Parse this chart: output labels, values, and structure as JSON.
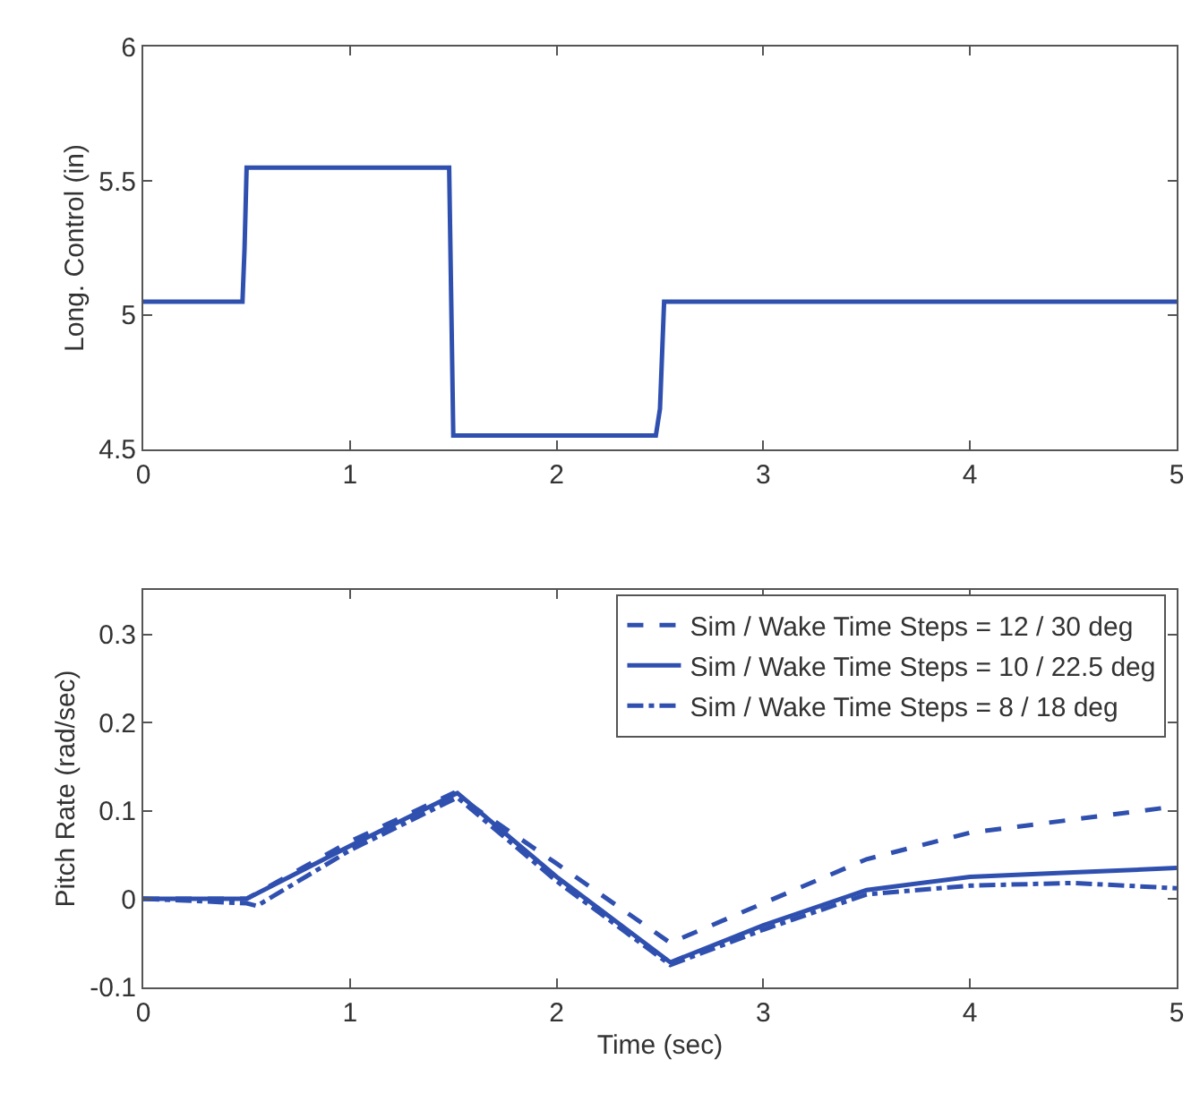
{
  "chart_data": [
    {
      "type": "line",
      "ylabel": "Long. Control (in)",
      "xlim": [
        0,
        5
      ],
      "xticks": [
        0,
        1,
        2,
        3,
        4,
        5
      ],
      "ylim": [
        4.5,
        6
      ],
      "yticks": [
        4.5,
        5,
        5.5,
        6
      ],
      "legend": false,
      "line_style": "solid",
      "series": [
        {
          "color": "#3050b0",
          "x": [
            0,
            0.48,
            0.49,
            0.5,
            1.48,
            1.49,
            1.5,
            2.48,
            2.5,
            2.52,
            5
          ],
          "values": [
            5.05,
            5.05,
            5.25,
            5.55,
            5.55,
            5.05,
            4.55,
            4.55,
            4.65,
            5.05,
            5.05
          ]
        }
      ]
    },
    {
      "type": "line",
      "xlabel": "Time (sec)",
      "ylabel": "Pitch Rate (rad/sec)",
      "xlim": [
        0,
        5
      ],
      "xticks": [
        0,
        1,
        2,
        3,
        4,
        5
      ],
      "ylim": [
        -0.1,
        0.35
      ],
      "yticks": [
        -0.1,
        0,
        0.1,
        0.2,
        0.3
      ],
      "legend": "top right",
      "series": [
        {
          "name": "Sim / Wake Time Steps = 12 / 30 deg",
          "color": "#3050b0",
          "line_style": "dashed",
          "x": [
            0,
            0.5,
            1.0,
            1.5,
            2.0,
            2.55,
            3.0,
            3.5,
            4.0,
            4.5,
            5.0
          ],
          "values": [
            0,
            0,
            0.065,
            0.12,
            0.04,
            -0.05,
            -0.005,
            0.045,
            0.075,
            0.09,
            0.105
          ]
        },
        {
          "name": "Sim / Wake Time Steps = 10 / 22.5 deg",
          "color": "#3050b0",
          "line_style": "solid",
          "x": [
            0,
            0.5,
            1.0,
            1.52,
            2.0,
            2.55,
            3.0,
            3.5,
            4.0,
            4.5,
            5.0
          ],
          "values": [
            0,
            0,
            0.06,
            0.12,
            0.025,
            -0.072,
            -0.03,
            0.01,
            0.025,
            0.03,
            0.035
          ]
        },
        {
          "name": "Sim / Wake Time Steps = 8 / 18 deg",
          "color": "#3050b0",
          "line_style": "dotted",
          "x": [
            0,
            0.5,
            0.55,
            1.0,
            1.52,
            2.0,
            2.55,
            3.0,
            3.5,
            4.0,
            4.5,
            5.0
          ],
          "values": [
            0,
            -0.005,
            -0.008,
            0.055,
            0.115,
            0.02,
            -0.075,
            -0.035,
            0.005,
            0.015,
            0.018,
            0.012
          ]
        }
      ]
    }
  ]
}
